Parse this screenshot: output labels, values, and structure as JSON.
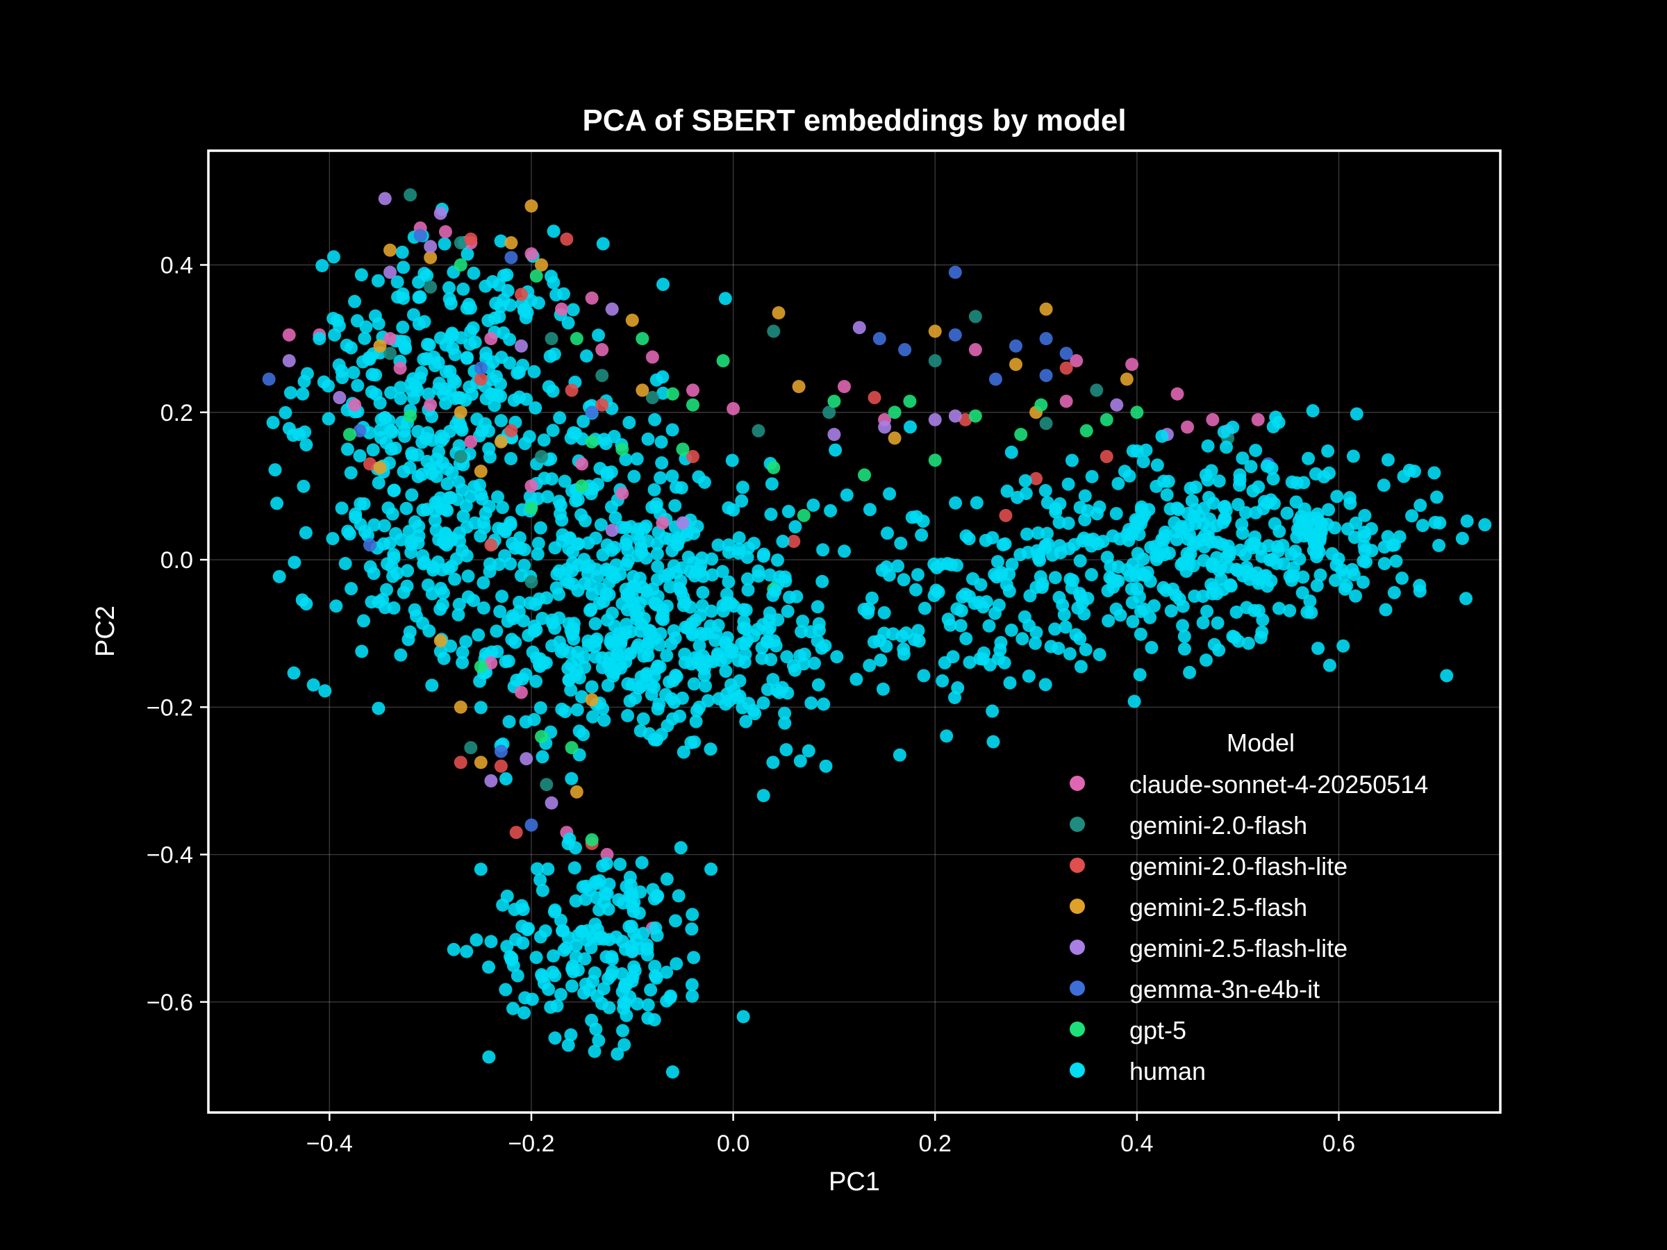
{
  "chart_data": {
    "type": "scatter",
    "title": "PCA of SBERT embeddings by model",
    "xlabel": "PC1",
    "ylabel": "PC2",
    "xlim": [
      -0.52,
      0.76
    ],
    "ylim": [
      -0.75,
      0.555
    ],
    "xticks": [
      -0.4,
      -0.2,
      0.0,
      0.2,
      0.4,
      0.6
    ],
    "xtick_labels": [
      "−0.4",
      "−0.2",
      "0.0",
      "0.2",
      "0.4",
      "0.6"
    ],
    "yticks": [
      -0.6,
      -0.4,
      -0.2,
      0.0,
      0.2,
      0.4
    ],
    "ytick_labels": [
      "−0.6",
      "−0.4",
      "−0.2",
      "0.0",
      "0.2",
      "0.4"
    ],
    "grid": true,
    "legend": {
      "title": "Model",
      "position": "lower-right"
    },
    "series": [
      {
        "name": "claude-sonnet-4-20250514",
        "color": "#e066b3",
        "points": [
          [
            -0.44,
            0.305
          ],
          [
            -0.41,
            0.305
          ],
          [
            -0.375,
            0.21
          ],
          [
            -0.34,
            0.3
          ],
          [
            -0.33,
            0.26
          ],
          [
            -0.31,
            0.45
          ],
          [
            -0.285,
            0.445
          ],
          [
            -0.26,
            0.43
          ],
          [
            -0.24,
            0.3
          ],
          [
            -0.2,
            0.415
          ],
          [
            -0.17,
            0.34
          ],
          [
            -0.14,
            0.355
          ],
          [
            -0.13,
            0.285
          ],
          [
            -0.08,
            0.275
          ],
          [
            -0.04,
            0.23
          ],
          [
            0.0,
            0.205
          ],
          [
            0.11,
            0.235
          ],
          [
            0.15,
            0.19
          ],
          [
            0.24,
            0.285
          ],
          [
            0.33,
            0.215
          ],
          [
            0.34,
            0.27
          ],
          [
            0.395,
            0.265
          ],
          [
            0.44,
            0.225
          ],
          [
            0.475,
            0.19
          ],
          [
            0.52,
            0.19
          ],
          [
            0.49,
            0.175
          ],
          [
            -0.26,
            0.16
          ],
          [
            -0.2,
            0.1
          ],
          [
            -0.15,
            0.13
          ],
          [
            -0.11,
            0.09
          ],
          [
            -0.07,
            0.05
          ],
          [
            -0.24,
            -0.14
          ],
          [
            -0.21,
            -0.18
          ],
          [
            -0.165,
            -0.37
          ],
          [
            -0.125,
            -0.4
          ],
          [
            -0.1,
            -0.53
          ],
          [
            -0.08,
            -0.5
          ],
          [
            0.45,
            0.18
          ],
          [
            -0.3,
            0.21
          ]
        ]
      },
      {
        "name": "gemini-2.0-flash",
        "color": "#1e8c7e",
        "points": [
          [
            -0.32,
            0.495
          ],
          [
            -0.27,
            0.43
          ],
          [
            -0.34,
            0.28
          ],
          [
            -0.3,
            0.37
          ],
          [
            -0.18,
            0.3
          ],
          [
            -0.13,
            0.25
          ],
          [
            -0.08,
            0.22
          ],
          [
            0.04,
            0.31
          ],
          [
            0.025,
            0.175
          ],
          [
            0.095,
            0.2
          ],
          [
            0.2,
            0.27
          ],
          [
            0.24,
            0.33
          ],
          [
            0.31,
            0.185
          ],
          [
            0.36,
            0.23
          ],
          [
            0.49,
            0.165
          ],
          [
            -0.19,
            0.14
          ],
          [
            -0.27,
            0.14
          ],
          [
            -0.26,
            -0.255
          ],
          [
            -0.185,
            -0.305
          ],
          [
            -0.2,
            -0.03
          ]
        ]
      },
      {
        "name": "gemini-2.0-flash-lite",
        "color": "#e04e4e",
        "points": [
          [
            -0.26,
            0.435
          ],
          [
            -0.165,
            0.435
          ],
          [
            -0.21,
            0.36
          ],
          [
            -0.36,
            0.13
          ],
          [
            -0.25,
            0.245
          ],
          [
            -0.22,
            0.175
          ],
          [
            -0.16,
            0.23
          ],
          [
            -0.13,
            0.21
          ],
          [
            -0.04,
            0.14
          ],
          [
            0.14,
            0.22
          ],
          [
            0.23,
            0.19
          ],
          [
            0.27,
            0.06
          ],
          [
            0.3,
            0.11
          ],
          [
            0.33,
            0.26
          ],
          [
            0.37,
            0.14
          ],
          [
            -0.27,
            -0.275
          ],
          [
            -0.23,
            -0.28
          ],
          [
            -0.215,
            -0.37
          ],
          [
            -0.14,
            -0.385
          ],
          [
            0.06,
            0.025
          ],
          [
            -0.24,
            0.02
          ]
        ]
      },
      {
        "name": "gemini-2.5-flash",
        "color": "#e0a12a",
        "points": [
          [
            -0.34,
            0.42
          ],
          [
            -0.2,
            0.48
          ],
          [
            -0.22,
            0.43
          ],
          [
            -0.3,
            0.41
          ],
          [
            -0.19,
            0.4
          ],
          [
            -0.1,
            0.325
          ],
          [
            -0.09,
            0.23
          ],
          [
            0.045,
            0.335
          ],
          [
            0.065,
            0.235
          ],
          [
            0.2,
            0.31
          ],
          [
            0.28,
            0.265
          ],
          [
            0.31,
            0.34
          ],
          [
            0.39,
            0.245
          ],
          [
            -0.35,
            0.125
          ],
          [
            -0.25,
            0.12
          ],
          [
            -0.23,
            0.16
          ],
          [
            -0.29,
            -0.11
          ],
          [
            -0.27,
            -0.2
          ],
          [
            -0.14,
            -0.19
          ],
          [
            -0.25,
            -0.275
          ],
          [
            -0.155,
            -0.315
          ],
          [
            -0.27,
            0.2
          ],
          [
            -0.35,
            0.29
          ],
          [
            0.16,
            0.165
          ],
          [
            0.3,
            0.2
          ]
        ]
      },
      {
        "name": "gemini-2.5-flash-lite",
        "color": "#a97fe6",
        "points": [
          [
            -0.345,
            0.49
          ],
          [
            -0.29,
            0.47
          ],
          [
            -0.3,
            0.425
          ],
          [
            -0.44,
            0.27
          ],
          [
            -0.39,
            0.22
          ],
          [
            -0.34,
            0.39
          ],
          [
            -0.21,
            0.29
          ],
          [
            -0.12,
            0.34
          ],
          [
            0.1,
            0.17
          ],
          [
            0.125,
            0.315
          ],
          [
            0.2,
            0.19
          ],
          [
            0.22,
            0.195
          ],
          [
            0.38,
            0.21
          ],
          [
            0.43,
            0.17
          ],
          [
            -0.24,
            -0.3
          ],
          [
            -0.205,
            -0.27
          ],
          [
            -0.18,
            -0.33
          ],
          [
            -0.12,
            0.04
          ],
          [
            -0.05,
            0.05
          ],
          [
            0.15,
            0.18
          ]
        ]
      },
      {
        "name": "gemma-3n-e4b-it",
        "color": "#3d6fd9",
        "points": [
          [
            -0.46,
            0.245
          ],
          [
            -0.31,
            0.44
          ],
          [
            -0.36,
            0.02
          ],
          [
            -0.37,
            0.175
          ],
          [
            -0.25,
            0.26
          ],
          [
            -0.14,
            0.2
          ],
          [
            0.22,
            0.39
          ],
          [
            0.145,
            0.3
          ],
          [
            0.17,
            0.285
          ],
          [
            0.22,
            0.305
          ],
          [
            0.26,
            0.245
          ],
          [
            0.28,
            0.29
          ],
          [
            0.31,
            0.3
          ],
          [
            0.33,
            0.28
          ],
          [
            0.31,
            0.25
          ],
          [
            -0.23,
            -0.26
          ],
          [
            -0.2,
            -0.36
          ],
          [
            0.53,
            0.13
          ],
          [
            -0.22,
            0.41
          ]
        ]
      },
      {
        "name": "gpt-5",
        "color": "#1ce07a",
        "points": [
          [
            -0.27,
            0.4
          ],
          [
            -0.195,
            0.385
          ],
          [
            -0.155,
            0.3
          ],
          [
            -0.09,
            0.3
          ],
          [
            -0.06,
            0.225
          ],
          [
            -0.04,
            0.21
          ],
          [
            -0.01,
            0.27
          ],
          [
            -0.14,
            0.16
          ],
          [
            -0.11,
            0.15
          ],
          [
            -0.05,
            0.15
          ],
          [
            0.04,
            0.125
          ],
          [
            0.07,
            0.06
          ],
          [
            0.13,
            0.115
          ],
          [
            0.1,
            0.215
          ],
          [
            0.16,
            0.2
          ],
          [
            0.175,
            0.215
          ],
          [
            0.2,
            0.135
          ],
          [
            0.24,
            0.195
          ],
          [
            0.285,
            0.17
          ],
          [
            0.305,
            0.21
          ],
          [
            0.35,
            0.175
          ],
          [
            0.37,
            0.19
          ],
          [
            0.4,
            0.2
          ],
          [
            -0.38,
            0.17
          ],
          [
            -0.32,
            0.195
          ],
          [
            -0.25,
            -0.145
          ],
          [
            -0.16,
            -0.255
          ],
          [
            -0.14,
            -0.38
          ],
          [
            -0.19,
            -0.24
          ],
          [
            0.04,
            -0.04
          ],
          [
            -0.15,
            0.1
          ],
          [
            -0.2,
            0.07
          ]
        ]
      },
      {
        "name": "human",
        "color": "#00ddf5",
        "clusters": [
          {
            "cx": -0.1,
            "cy": -0.1,
            "sx": 0.08,
            "sy": 0.085,
            "n": 380
          },
          {
            "cx": -0.28,
            "cy": 0.26,
            "sx": 0.07,
            "sy": 0.085,
            "n": 260
          },
          {
            "cx": -0.31,
            "cy": 0.02,
            "sx": 0.06,
            "sy": 0.09,
            "n": 170
          },
          {
            "cx": -0.14,
            "cy": 0.08,
            "sx": 0.08,
            "sy": 0.08,
            "n": 150
          },
          {
            "cx": 0.02,
            "cy": -0.13,
            "sx": 0.05,
            "sy": 0.08,
            "n": 80
          },
          {
            "cx": -0.13,
            "cy": -0.52,
            "sx": 0.055,
            "sy": 0.065,
            "n": 190
          },
          {
            "cx": 0.52,
            "cy": 0.03,
            "sx": 0.09,
            "sy": 0.065,
            "n": 310
          },
          {
            "cx": 0.35,
            "cy": -0.02,
            "sx": 0.08,
            "sy": 0.07,
            "n": 170
          },
          {
            "cx": 0.17,
            "cy": -0.05,
            "sx": 0.06,
            "sy": 0.08,
            "n": 80
          }
        ],
        "points": [
          [
            -0.43,
            0.17
          ],
          [
            -0.41,
            0.3
          ],
          [
            -0.395,
            0.305
          ],
          [
            -0.38,
            0.035
          ],
          [
            0.7,
            0.05
          ],
          [
            0.675,
            0.12
          ],
          [
            0.68,
            -0.035
          ],
          [
            0.165,
            -0.265
          ],
          [
            0.03,
            -0.32
          ],
          [
            -0.06,
            -0.695
          ],
          [
            0.01,
            -0.62
          ],
          [
            -0.25,
            -0.42
          ]
        ]
      }
    ]
  }
}
